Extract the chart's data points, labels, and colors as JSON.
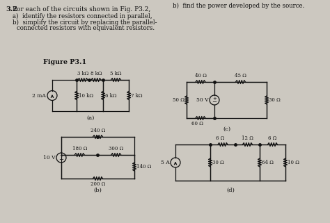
{
  "bg_color": "#ccc8c0",
  "text_color": "#111111",
  "circuit_color": "#111111",
  "title_bold": "3.2",
  "title_rest": "  For each of the circuits shown in Fig. P3.2,",
  "sub_a": "a)  identify the resistors connected in parallel,",
  "sub_b1": "b)  simplify the circuit by replacing the parallel-",
  "sub_b2": "      connected resistors with equivalent resistors.",
  "right_top": "b)  find the power developed by the source.",
  "figure_label": "Figure P3.1",
  "label_a": "(a)",
  "label_b": "(b)",
  "label_c": "(c)",
  "label_d": "(d)"
}
